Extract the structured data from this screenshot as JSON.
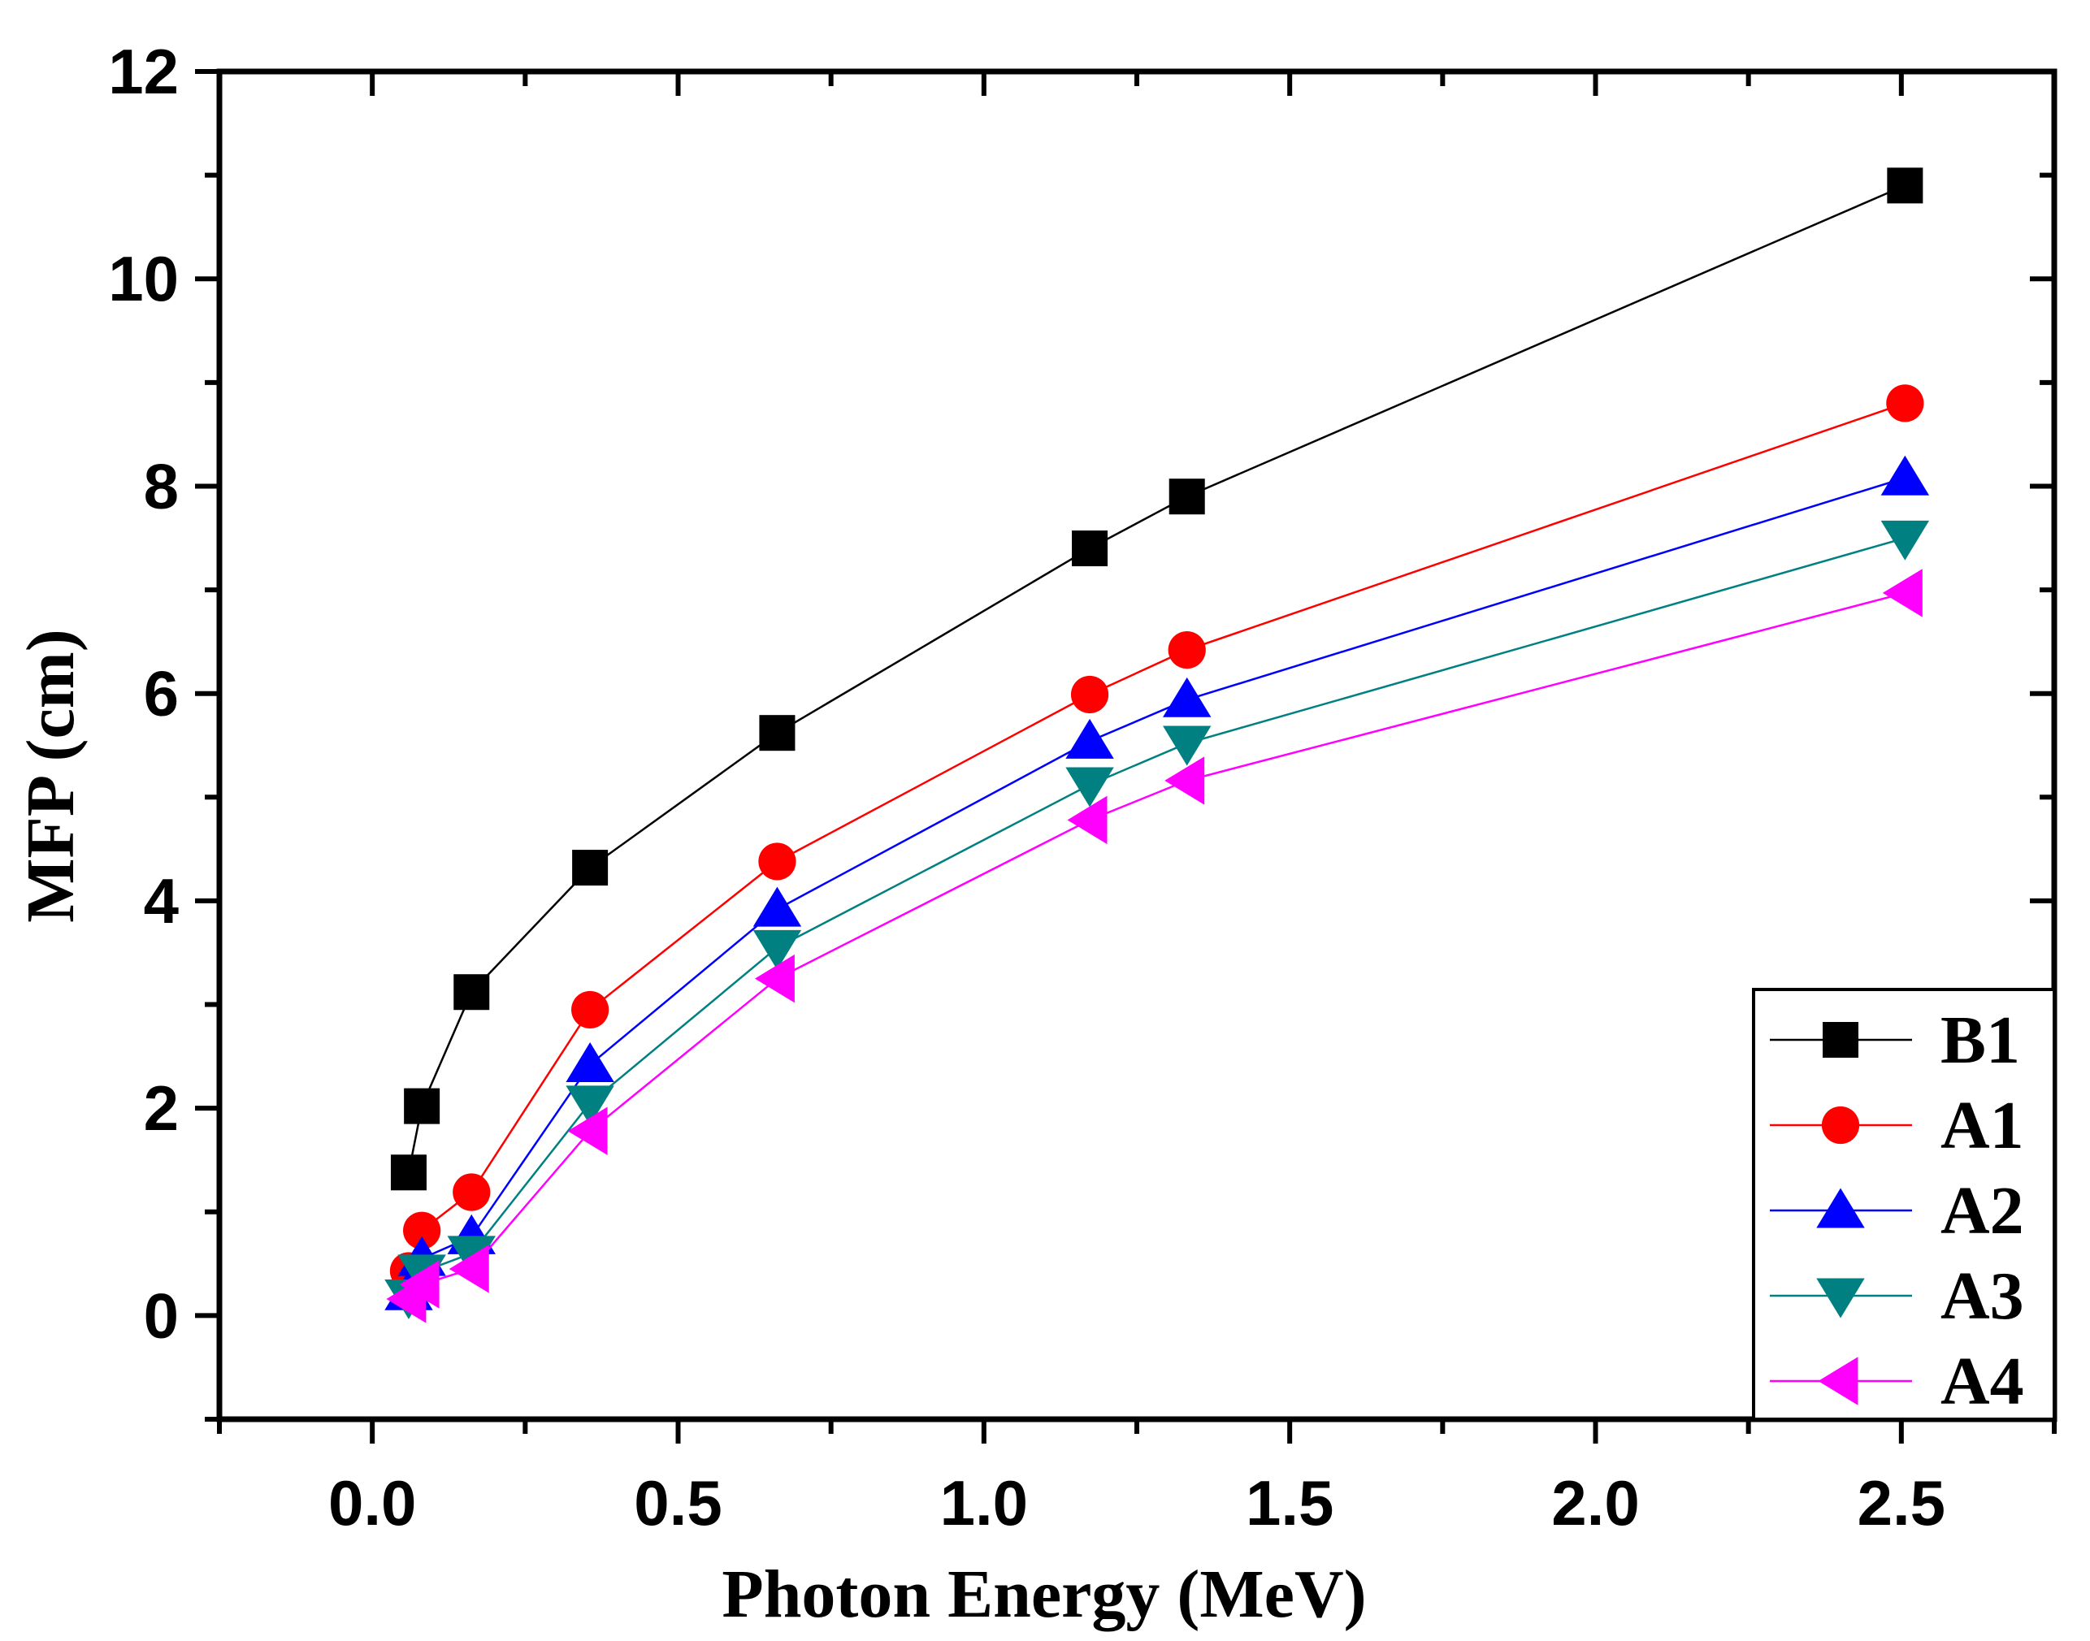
{
  "chart_data": {
    "type": "line",
    "xlabel": "Photon Energy (MeV)",
    "ylabel": "MFP (cm)",
    "xlim": [
      -0.25,
      2.75
    ],
    "ylim": [
      -1,
      12
    ],
    "xticks": [
      0.0,
      0.5,
      1.0,
      1.5,
      2.0,
      2.5
    ],
    "xtick_labels": [
      "0.0",
      "0.5",
      "1.0",
      "1.5",
      "2.0",
      "2.5"
    ],
    "yticks": [
      0,
      2,
      4,
      6,
      8,
      10,
      12
    ],
    "ytick_labels": [
      "0",
      "2",
      "4",
      "6",
      "8",
      "10",
      "12"
    ],
    "grid": false,
    "legend_position": "bottom-right",
    "x": [
      0.0595,
      0.081,
      0.1622,
      0.356,
      0.662,
      1.173,
      1.332,
      2.506
    ],
    "series": [
      {
        "name": "B1",
        "color": "#000000",
        "marker": "square",
        "values": [
          1.38,
          2.02,
          3.12,
          4.32,
          5.62,
          7.4,
          7.9,
          10.9
        ]
      },
      {
        "name": "A1",
        "color": "#ff0000",
        "marker": "circle",
        "values": [
          0.43,
          0.82,
          1.19,
          2.95,
          4.38,
          5.99,
          6.42,
          8.8
        ]
      },
      {
        "name": "A2",
        "color": "#0000ff",
        "marker": "triangle-up",
        "values": [
          0.22,
          0.55,
          0.76,
          2.42,
          3.92,
          5.54,
          5.94,
          8.08
        ]
      },
      {
        "name": "A3",
        "color": "#008080",
        "marker": "triangle-down",
        "values": [
          0.18,
          0.42,
          0.6,
          2.05,
          3.55,
          5.12,
          5.52,
          7.5
        ]
      },
      {
        "name": "A4",
        "color": "#ff00ff",
        "marker": "triangle-left",
        "values": [
          0.16,
          0.3,
          0.45,
          1.78,
          3.25,
          4.78,
          5.16,
          6.97
        ]
      }
    ]
  }
}
